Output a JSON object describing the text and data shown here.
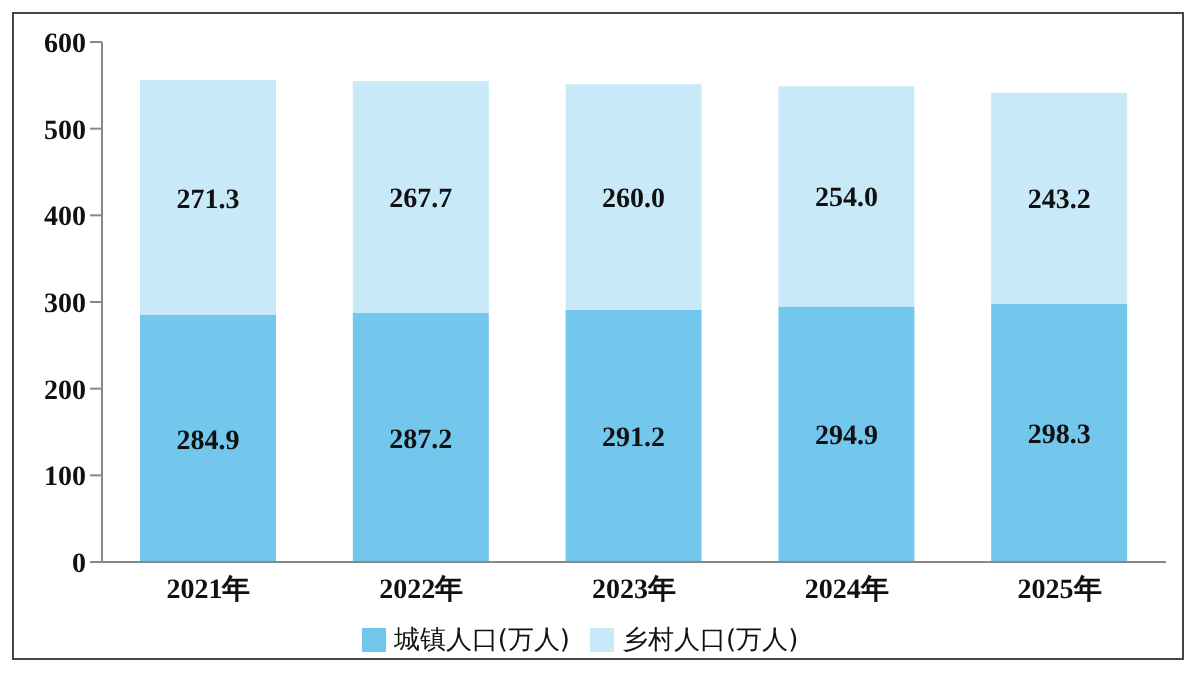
{
  "chart_data": {
    "type": "bar",
    "stacked": true,
    "categories": [
      "2021年",
      "2022年",
      "2023年",
      "2024年",
      "2025年"
    ],
    "series": [
      {
        "name": "城镇人口(万人)",
        "color": "#73c6ec",
        "values": [
          284.9,
          287.2,
          291.2,
          294.9,
          298.3
        ],
        "value_labels": [
          "284.9",
          "287.2",
          "291.2",
          "294.9",
          "298.3"
        ]
      },
      {
        "name": "乡村人口(万人)",
        "color": "#c8e9f8",
        "values": [
          271.3,
          267.7,
          260.0,
          254.0,
          243.2
        ],
        "value_labels": [
          "271.3",
          "267.7",
          "260.0",
          "254.0",
          "243.2"
        ]
      }
    ],
    "ylim": [
      0,
      600
    ],
    "yticks": [
      0,
      100,
      200,
      300,
      400,
      500,
      600
    ],
    "grid": false,
    "legend": "bottom"
  }
}
